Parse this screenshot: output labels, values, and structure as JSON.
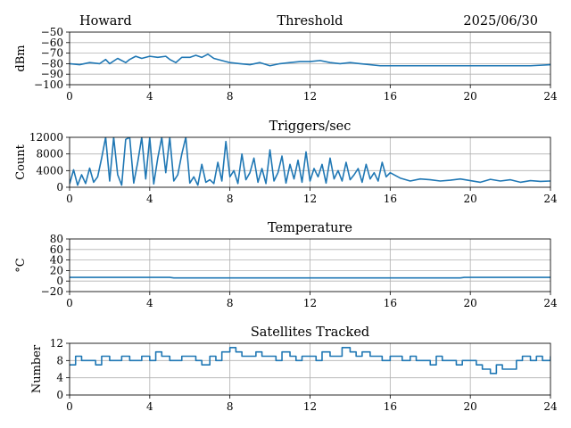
{
  "header": {
    "station": "Howard",
    "date": "2025/06/30"
  },
  "chart_data": [
    {
      "type": "line",
      "title": "Threshold",
      "ylabel": "dBm",
      "xlim": [
        0,
        24
      ],
      "ylim": [
        -100,
        -50
      ],
      "xticks": [
        0,
        4,
        8,
        12,
        16,
        20,
        24
      ],
      "yticks": [
        -100,
        -90,
        -80,
        -70,
        -60,
        -50
      ],
      "ytick_labels": [
        "−100",
        "−90",
        "−80",
        "−70",
        "−60",
        "−50"
      ],
      "grid": true,
      "color": "#1f77b4",
      "series": [
        {
          "x": [
            0,
            0.5,
            1,
            1.5,
            1.8,
            2,
            2.4,
            2.8,
            3,
            3.3,
            3.6,
            4,
            4.4,
            4.8,
            5,
            5.3,
            5.6,
            6,
            6.3,
            6.6,
            6.9,
            7.2,
            7.6,
            8,
            8.5,
            9,
            9.5,
            10,
            10.5,
            11,
            11.5,
            12,
            12.5,
            13,
            13.5,
            14,
            14.5,
            15,
            15.5,
            16,
            17,
            18,
            19,
            20,
            21,
            22,
            23,
            24
          ],
          "y": [
            -80,
            -81,
            -79,
            -80,
            -76,
            -80,
            -75,
            -79,
            -76,
            -73,
            -75,
            -73,
            -74,
            -73,
            -76,
            -79,
            -74,
            -74,
            -72,
            -74,
            -71,
            -75,
            -77,
            -79,
            -80,
            -81,
            -79,
            -82,
            -80,
            -79,
            -78,
            -78,
            -77,
            -79,
            -80,
            -79,
            -80,
            -81,
            -82,
            -82,
            -82,
            -82,
            -82,
            -82,
            -82,
            -82,
            -82,
            -81
          ]
        }
      ]
    },
    {
      "type": "line",
      "title": "Triggers/sec",
      "ylabel": "Count",
      "xlim": [
        0,
        24
      ],
      "ylim": [
        0,
        12000
      ],
      "xticks": [
        0,
        4,
        8,
        12,
        16,
        20,
        24
      ],
      "yticks": [
        0,
        4000,
        8000,
        12000
      ],
      "ytick_labels": [
        "0",
        "4000",
        "8000",
        "12000"
      ],
      "grid": true,
      "color": "#1f77b4",
      "series": [
        {
          "x": [
            0,
            0.2,
            0.4,
            0.6,
            0.8,
            1,
            1.2,
            1.4,
            1.6,
            1.8,
            2,
            2.2,
            2.4,
            2.6,
            2.8,
            3,
            3.2,
            3.4,
            3.6,
            3.8,
            4,
            4.2,
            4.4,
            4.6,
            4.8,
            5,
            5.2,
            5.4,
            5.6,
            5.8,
            6,
            6.2,
            6.4,
            6.6,
            6.8,
            7,
            7.2,
            7.4,
            7.6,
            7.8,
            8,
            8.2,
            8.4,
            8.6,
            8.8,
            9,
            9.2,
            9.4,
            9.6,
            9.8,
            10,
            10.2,
            10.4,
            10.6,
            10.8,
            11,
            11.2,
            11.4,
            11.6,
            11.8,
            12,
            12.2,
            12.4,
            12.6,
            12.8,
            13,
            13.2,
            13.4,
            13.6,
            13.8,
            14,
            14.2,
            14.4,
            14.6,
            14.8,
            15,
            15.2,
            15.4,
            15.6,
            15.8,
            16,
            16.5,
            17,
            17.5,
            18,
            18.5,
            19,
            19.5,
            20,
            20.5,
            21,
            21.5,
            22,
            22.5,
            23,
            23.5,
            24
          ],
          "y": [
            800,
            4200,
            500,
            3000,
            900,
            4600,
            1200,
            2500,
            7000,
            12000,
            1500,
            12000,
            3000,
            500,
            11500,
            12000,
            1000,
            6000,
            12000,
            2000,
            12000,
            800,
            7000,
            12000,
            3500,
            12000,
            1500,
            3000,
            8000,
            12000,
            1000,
            2500,
            500,
            5500,
            1200,
            1800,
            900,
            6000,
            1500,
            11000,
            2500,
            4000,
            900,
            8000,
            1800,
            3500,
            7000,
            1200,
            4500,
            900,
            9000,
            1500,
            3500,
            7500,
            1000,
            5500,
            2000,
            6500,
            1200,
            8500,
            1500,
            4500,
            2500,
            5500,
            1000,
            7000,
            2000,
            4000,
            1500,
            6000,
            1800,
            3000,
            4500,
            1200,
            5500,
            2000,
            3500,
            1500,
            6000,
            2500,
            3500,
            2200,
            1500,
            2000,
            1800,
            1500,
            1700,
            2000,
            1600,
            1200,
            1900,
            1500,
            1800,
            1200,
            1600,
            1400,
            1500
          ]
        }
      ]
    },
    {
      "type": "line",
      "title": "Temperature",
      "ylabel": "°C",
      "xlim": [
        0,
        24
      ],
      "ylim": [
        -20,
        80
      ],
      "xticks": [
        0,
        4,
        8,
        12,
        16,
        20,
        24
      ],
      "yticks": [
        -20,
        0,
        20,
        40,
        60,
        80
      ],
      "ytick_labels": [
        "−20",
        "0",
        "20",
        "40",
        "60",
        "80"
      ],
      "grid": true,
      "color": "#1f77b4",
      "series": [
        {
          "x": [
            0,
            2,
            4,
            5,
            5.2,
            8,
            12,
            16,
            19.5,
            19.7,
            22,
            24
          ],
          "y": [
            7,
            7,
            7,
            7,
            6,
            6,
            6,
            6,
            6,
            7,
            7,
            7
          ]
        }
      ]
    },
    {
      "type": "line",
      "title": "Satellites Tracked",
      "ylabel": "Number",
      "xlim": [
        0,
        24
      ],
      "ylim": [
        0,
        12
      ],
      "xticks": [
        0,
        4,
        8,
        12,
        16,
        20,
        24
      ],
      "yticks": [
        0,
        4,
        8,
        12
      ],
      "ytick_labels": [
        "0",
        "4",
        "8",
        "12"
      ],
      "grid": true,
      "color": "#1f77b4",
      "series": [
        {
          "x": [
            0,
            0.3,
            0.6,
            1,
            1.3,
            1.6,
            2,
            2.3,
            2.6,
            3,
            3.3,
            3.6,
            4,
            4.3,
            4.6,
            5,
            5.3,
            5.6,
            6,
            6.3,
            6.6,
            7,
            7.3,
            7.6,
            8,
            8.3,
            8.6,
            9,
            9.3,
            9.6,
            10,
            10.3,
            10.6,
            11,
            11.3,
            11.6,
            12,
            12.3,
            12.6,
            13,
            13.3,
            13.6,
            14,
            14.3,
            14.6,
            15,
            15.3,
            15.6,
            16,
            16.3,
            16.6,
            17,
            17.3,
            17.6,
            18,
            18.3,
            18.6,
            19,
            19.3,
            19.6,
            20,
            20.3,
            20.6,
            21,
            21.3,
            21.6,
            22,
            22.3,
            22.6,
            23,
            23.3,
            23.6,
            24
          ],
          "y": [
            7,
            9,
            8,
            8,
            7,
            9,
            8,
            8,
            9,
            8,
            8,
            9,
            8,
            10,
            9,
            8,
            8,
            9,
            9,
            8,
            7,
            9,
            8,
            10,
            11,
            10,
            9,
            9,
            10,
            9,
            9,
            8,
            10,
            9,
            8,
            9,
            9,
            8,
            10,
            9,
            9,
            11,
            10,
            9,
            10,
            9,
            9,
            8,
            9,
            9,
            8,
            9,
            8,
            8,
            7,
            9,
            8,
            8,
            7,
            8,
            8,
            7,
            6,
            5,
            7,
            6,
            6,
            8,
            9,
            8,
            9,
            8,
            9
          ]
        }
      ]
    }
  ]
}
